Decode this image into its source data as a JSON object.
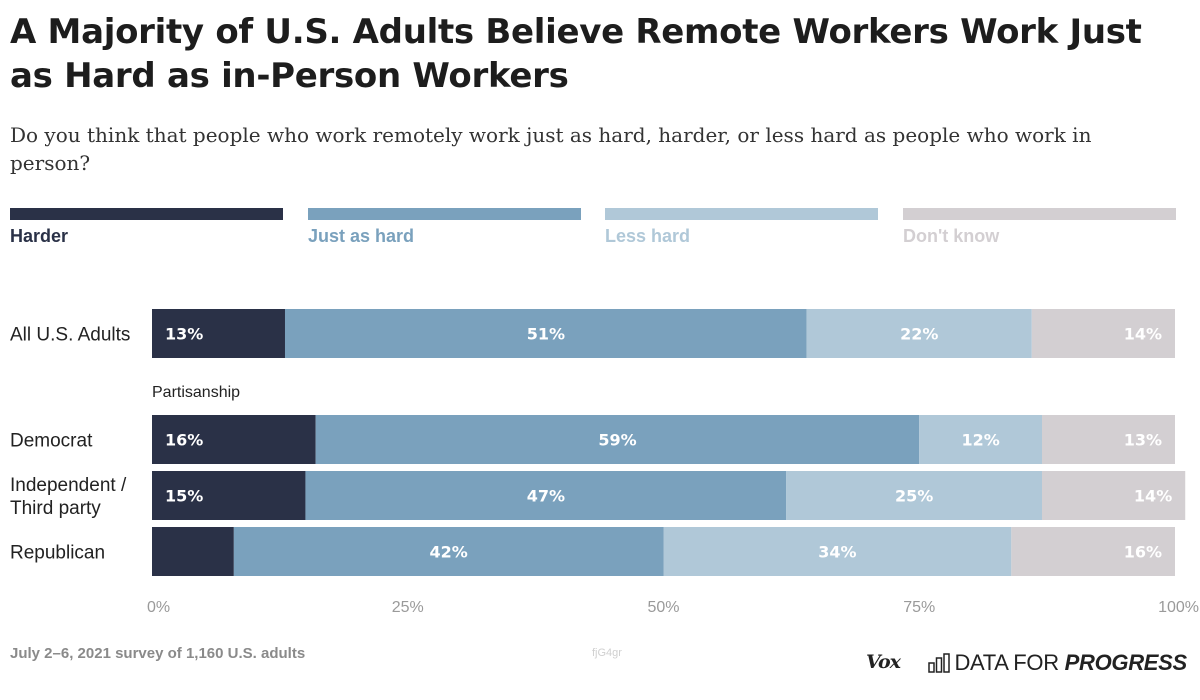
{
  "title": "A Majority of U.S. Adults Believe Remote Workers Work Just as Hard as in-Person Workers",
  "subtitle": "Do you think that people who work remotely work just as hard, harder, or less hard as people who work in person?",
  "legend": [
    {
      "label": "Harder",
      "color": "#2a3147"
    },
    {
      "label": "Just as hard",
      "color": "#7aa1bd"
    },
    {
      "label": "Less hard",
      "color": "#b0c8d8"
    },
    {
      "label": "Don't know",
      "color": "#d3cfd2"
    }
  ],
  "chart_data": {
    "type": "bar",
    "orientation": "horizontal",
    "stacked": true,
    "percent": true,
    "xlim": [
      0,
      100
    ],
    "x_ticks": [
      0,
      25,
      50,
      75,
      100
    ],
    "x_tick_labels": [
      "0%",
      "25%",
      "50%",
      "75%",
      "100%"
    ],
    "categories": [
      "All U.S. Adults",
      "Democrat",
      "Independent / Third party",
      "Republican"
    ],
    "category_lines": [
      [
        "All U.S. Adults"
      ],
      [
        "Democrat"
      ],
      [
        "Independent /",
        "Third party"
      ],
      [
        "Republican"
      ]
    ],
    "groups": [
      {
        "label": "Partisanship",
        "categories": [
          "Democrat",
          "Independent / Third party",
          "Republican"
        ]
      }
    ],
    "series": [
      {
        "name": "Harder",
        "color": "#2a3147",
        "values": [
          13,
          16,
          15,
          8
        ],
        "labels": [
          "13%",
          "16%",
          "15%",
          ""
        ]
      },
      {
        "name": "Just as hard",
        "color": "#7aa1bd",
        "values": [
          51,
          59,
          47,
          42
        ],
        "labels": [
          "51%",
          "59%",
          "47%",
          "42%"
        ]
      },
      {
        "name": "Less hard",
        "color": "#b0c8d8",
        "values": [
          22,
          12,
          25,
          34
        ],
        "labels": [
          "22%",
          "12%",
          "25%",
          "34%"
        ]
      },
      {
        "name": "Don't know",
        "color": "#d3cfd2",
        "values": [
          14,
          13,
          14,
          16
        ],
        "labels": [
          "14%",
          "13%",
          "14%",
          "16%"
        ]
      }
    ]
  },
  "footer": {
    "note": "July 2–6, 2021 survey of 1,160 U.S. adults",
    "chart_id": "fjG4gr",
    "vox_logo": "Vox",
    "dfp_logo_plain": "DATA FOR ",
    "dfp_logo_strong": "PROGRESS"
  }
}
